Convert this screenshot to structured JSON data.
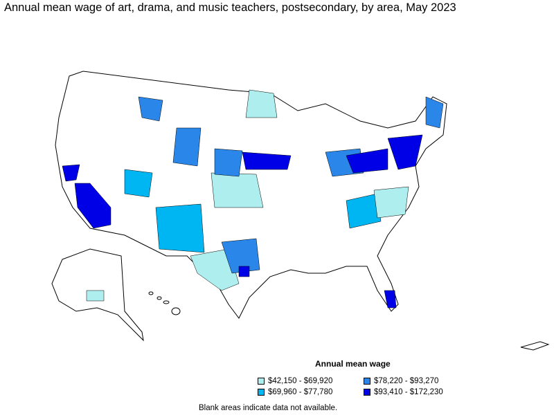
{
  "title": "Annual mean wage of art, drama, and music teachers, postsecondary, by area, May 2023",
  "legend": {
    "title": "Annual mean wage",
    "items": [
      {
        "label": "$42,150 - $69,920",
        "color": "#aeeeee"
      },
      {
        "label": "$69,960 - $77,780",
        "color": "#00b6f2"
      },
      {
        "label": "$78,220 - $93,270",
        "color": "#2a86e8"
      },
      {
        "label": "$93,410 - $172,230",
        "color": "#0000e6"
      }
    ]
  },
  "footnote": "Blank areas indicate data not available."
}
